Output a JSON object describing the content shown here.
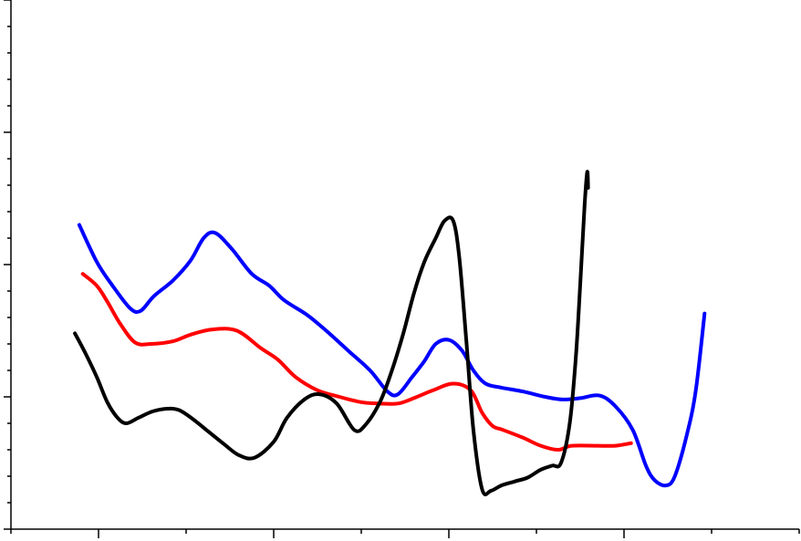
{
  "chart_data": {
    "type": "line",
    "title": "",
    "xlabel": "",
    "ylabel": "",
    "xlim": [
      0,
      9
    ],
    "ylim": [
      0,
      4
    ],
    "x_major_ticks": [
      1,
      3,
      5,
      7
    ],
    "x_minor_ticks": [
      0,
      2,
      4,
      6,
      8,
      9
    ],
    "y_major_ticks": [
      0,
      1,
      2,
      3,
      4
    ],
    "y_minor_step": 0.2,
    "grid": false,
    "legend": "none",
    "series": [
      {
        "color": "#0000ff",
        "points": [
          [
            0.78,
            2.3
          ],
          [
            0.98,
            2.02
          ],
          [
            1.15,
            1.85
          ],
          [
            1.36,
            1.67
          ],
          [
            1.48,
            1.65
          ],
          [
            1.63,
            1.76
          ],
          [
            1.85,
            1.88
          ],
          [
            2.05,
            2.03
          ],
          [
            2.2,
            2.2
          ],
          [
            2.33,
            2.24
          ],
          [
            2.52,
            2.12
          ],
          [
            2.75,
            1.93
          ],
          [
            2.95,
            1.84
          ],
          [
            3.12,
            1.73
          ],
          [
            3.38,
            1.62
          ],
          [
            3.6,
            1.5
          ],
          [
            3.85,
            1.35
          ],
          [
            4.1,
            1.2
          ],
          [
            4.3,
            1.04
          ],
          [
            4.42,
            1.02
          ],
          [
            4.58,
            1.15
          ],
          [
            4.72,
            1.27
          ],
          [
            4.85,
            1.4
          ],
          [
            5.0,
            1.43
          ],
          [
            5.15,
            1.35
          ],
          [
            5.28,
            1.2
          ],
          [
            5.42,
            1.1
          ],
          [
            5.6,
            1.07
          ],
          [
            5.85,
            1.04
          ],
          [
            6.1,
            1.0
          ],
          [
            6.3,
            0.98
          ],
          [
            6.5,
            0.99
          ],
          [
            6.72,
            1.01
          ],
          [
            6.9,
            0.93
          ],
          [
            7.1,
            0.75
          ],
          [
            7.25,
            0.48
          ],
          [
            7.35,
            0.37
          ],
          [
            7.48,
            0.33
          ],
          [
            7.58,
            0.4
          ],
          [
            7.72,
            0.72
          ],
          [
            7.82,
            1.05
          ],
          [
            7.92,
            1.63
          ]
        ]
      },
      {
        "color": "#ff0000",
        "points": [
          [
            0.82,
            1.93
          ],
          [
            0.98,
            1.84
          ],
          [
            1.1,
            1.72
          ],
          [
            1.25,
            1.55
          ],
          [
            1.42,
            1.41
          ],
          [
            1.6,
            1.4
          ],
          [
            1.85,
            1.42
          ],
          [
            2.05,
            1.47
          ],
          [
            2.3,
            1.51
          ],
          [
            2.58,
            1.5
          ],
          [
            2.85,
            1.37
          ],
          [
            3.05,
            1.28
          ],
          [
            3.25,
            1.15
          ],
          [
            3.5,
            1.05
          ],
          [
            3.75,
            1.0
          ],
          [
            4.0,
            0.96
          ],
          [
            4.2,
            0.95
          ],
          [
            4.42,
            0.95
          ],
          [
            4.6,
            0.99
          ],
          [
            4.82,
            1.05
          ],
          [
            5.05,
            1.1
          ],
          [
            5.25,
            1.05
          ],
          [
            5.38,
            0.88
          ],
          [
            5.5,
            0.78
          ],
          [
            5.62,
            0.75
          ],
          [
            5.85,
            0.69
          ],
          [
            6.05,
            0.63
          ],
          [
            6.25,
            0.6
          ],
          [
            6.4,
            0.63
          ],
          [
            6.7,
            0.63
          ],
          [
            6.9,
            0.63
          ],
          [
            7.08,
            0.65
          ]
        ]
      },
      {
        "color": "#000000",
        "points": [
          [
            0.73,
            1.48
          ],
          [
            0.85,
            1.33
          ],
          [
            0.98,
            1.15
          ],
          [
            1.1,
            0.96
          ],
          [
            1.22,
            0.84
          ],
          [
            1.32,
            0.8
          ],
          [
            1.45,
            0.84
          ],
          [
            1.62,
            0.89
          ],
          [
            1.78,
            0.91
          ],
          [
            1.92,
            0.9
          ],
          [
            2.08,
            0.83
          ],
          [
            2.25,
            0.74
          ],
          [
            2.42,
            0.65
          ],
          [
            2.6,
            0.56
          ],
          [
            2.78,
            0.54
          ],
          [
            3.0,
            0.66
          ],
          [
            3.15,
            0.84
          ],
          [
            3.35,
            0.98
          ],
          [
            3.52,
            1.02
          ],
          [
            3.72,
            0.95
          ],
          [
            3.92,
            0.75
          ],
          [
            4.05,
            0.79
          ],
          [
            4.22,
            0.97
          ],
          [
            4.35,
            1.2
          ],
          [
            4.48,
            1.48
          ],
          [
            4.6,
            1.78
          ],
          [
            4.72,
            2.02
          ],
          [
            4.85,
            2.2
          ],
          [
            4.95,
            2.33
          ],
          [
            5.05,
            2.33
          ],
          [
            5.12,
            2.05
          ],
          [
            5.2,
            1.42
          ],
          [
            5.28,
            0.75
          ],
          [
            5.38,
            0.3
          ],
          [
            5.48,
            0.29
          ],
          [
            5.6,
            0.33
          ],
          [
            5.75,
            0.36
          ],
          [
            5.9,
            0.39
          ],
          [
            6.05,
            0.45
          ],
          [
            6.18,
            0.48
          ],
          [
            6.28,
            0.5
          ],
          [
            6.38,
            0.8
          ],
          [
            6.45,
            1.3
          ],
          [
            6.5,
            1.85
          ],
          [
            6.55,
            2.45
          ],
          [
            6.58,
            2.7
          ],
          [
            6.59,
            2.58
          ]
        ]
      }
    ]
  }
}
